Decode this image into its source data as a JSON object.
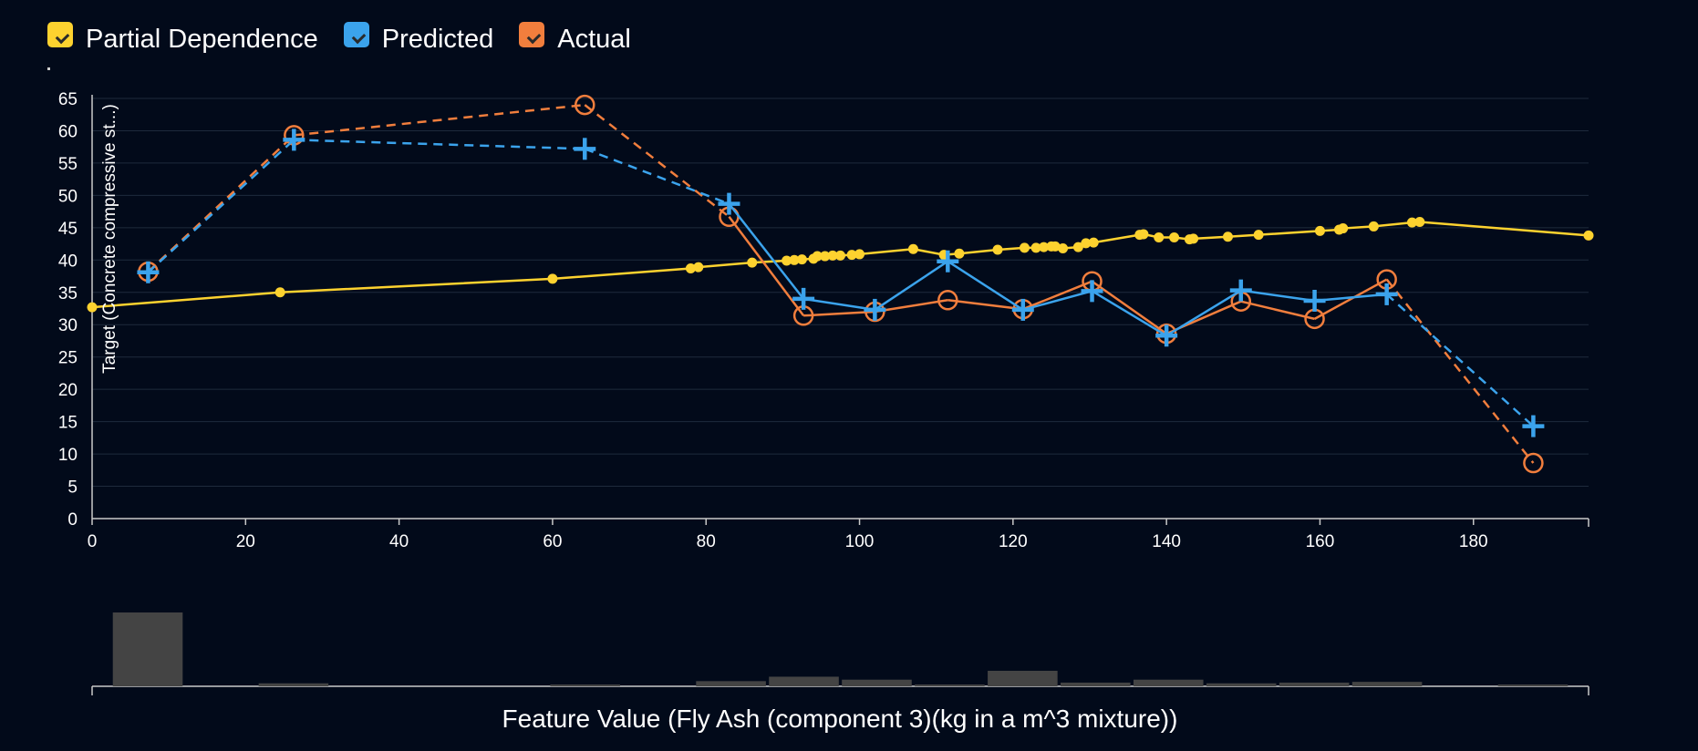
{
  "legend": [
    {
      "label": "Partial Dependence",
      "color": "#fdd22f",
      "checked": true
    },
    {
      "label": "Predicted",
      "color": "#3ba3ec",
      "checked": true
    },
    {
      "label": "Actual",
      "color": "#f17e3d",
      "checked": true
    }
  ],
  "colors": {
    "background": "#020a1a",
    "grid": "#1e2a3c",
    "axis": "#c9c9c9",
    "pd": "#fdd22f",
    "predicted": "#3ba3ec",
    "actual": "#f17e3d",
    "histogram": "#444444"
  },
  "chart_data": {
    "type": "line",
    "ylabel": "Target (Concrete compressive st...)",
    "xlabel": "Feature Value (Fly Ash (component 3)(kg in a m^3 mixture))",
    "xlim": [
      0,
      195
    ],
    "ylim": [
      0,
      65
    ],
    "xticks": [
      0,
      20,
      40,
      60,
      80,
      100,
      120,
      140,
      160,
      180
    ],
    "yticks": [
      0,
      5,
      10,
      15,
      20,
      25,
      30,
      35,
      40,
      45,
      50,
      55,
      60,
      65
    ],
    "grid": true,
    "legend_position": "top-left",
    "series": [
      {
        "name": "Partial Dependence",
        "style": "solid-dots",
        "x": [
          0,
          24.5,
          60,
          78,
          79,
          86,
          90.5,
          91.5,
          92.5,
          94,
          94.5,
          95.5,
          96.5,
          97.5,
          99,
          100,
          107,
          111,
          113,
          118,
          121.5,
          123,
          124,
          125,
          125.5,
          126.5,
          128.5,
          129.5,
          130.5,
          136.5,
          137,
          139,
          141,
          143,
          143.5,
          148,
          152,
          160,
          162.5,
          163,
          167,
          172,
          173,
          195
        ],
        "y": [
          32.7,
          35.0,
          37.1,
          38.7,
          38.9,
          39.6,
          39.9,
          40.0,
          40.1,
          40.2,
          40.6,
          40.6,
          40.7,
          40.7,
          40.8,
          40.9,
          41.7,
          40.8,
          41.0,
          41.6,
          41.9,
          41.9,
          42.0,
          42.1,
          42.1,
          41.8,
          42.0,
          42.6,
          42.7,
          43.9,
          44.0,
          43.5,
          43.5,
          43.2,
          43.3,
          43.6,
          43.9,
          44.5,
          44.7,
          44.9,
          45.2,
          45.8,
          45.9,
          43.8
        ]
      },
      {
        "name": "Predicted",
        "style": "plus",
        "x": [
          7.3,
          26.3,
          64.2,
          83,
          92.7,
          102,
          111.5,
          121.3,
          130.3,
          140,
          149.7,
          159.3,
          168.7,
          187.8
        ],
        "y": [
          38.1,
          58.6,
          57.2,
          48.7,
          34.0,
          32.3,
          39.8,
          32.3,
          35.2,
          28.3,
          35.3,
          33.7,
          34.7,
          14.3
        ],
        "dashed_segments": [
          [
            0,
            1
          ],
          [
            1,
            2
          ],
          [
            2,
            3
          ],
          [
            12,
            13
          ]
        ]
      },
      {
        "name": "Actual",
        "style": "circle",
        "x": [
          7.3,
          26.3,
          64.2,
          83,
          92.7,
          102,
          111.5,
          121.3,
          130.3,
          140,
          149.7,
          159.3,
          168.7,
          187.8
        ],
        "y": [
          38.2,
          59.3,
          64.0,
          46.7,
          31.4,
          32.0,
          33.8,
          32.4,
          36.7,
          28.6,
          33.6,
          30.9,
          37.0,
          8.6
        ],
        "dashed_segments": [
          [
            0,
            1
          ],
          [
            1,
            2
          ],
          [
            2,
            3
          ],
          [
            12,
            13
          ]
        ]
      }
    ],
    "histogram": {
      "bins": [
        {
          "x0": 2.7,
          "x1": 11.8,
          "count": 1.0
        },
        {
          "x0": 21.7,
          "x1": 30.8,
          "count": 0.04
        },
        {
          "x0": 59.7,
          "x1": 68.8,
          "count": 0.02
        },
        {
          "x0": 78.7,
          "x1": 87.8,
          "count": 0.07
        },
        {
          "x0": 88.2,
          "x1": 97.3,
          "count": 0.13
        },
        {
          "x0": 97.7,
          "x1": 106.8,
          "count": 0.09
        },
        {
          "x0": 107.2,
          "x1": 116.3,
          "count": 0.02
        },
        {
          "x0": 116.7,
          "x1": 125.8,
          "count": 0.21
        },
        {
          "x0": 126.2,
          "x1": 135.3,
          "count": 0.05
        },
        {
          "x0": 135.7,
          "x1": 144.8,
          "count": 0.09
        },
        {
          "x0": 145.2,
          "x1": 154.3,
          "count": 0.04
        },
        {
          "x0": 154.7,
          "x1": 163.8,
          "count": 0.05
        },
        {
          "x0": 164.2,
          "x1": 173.3,
          "count": 0.06
        },
        {
          "x0": 183.2,
          "x1": 192.3,
          "count": 0.02
        }
      ]
    }
  }
}
